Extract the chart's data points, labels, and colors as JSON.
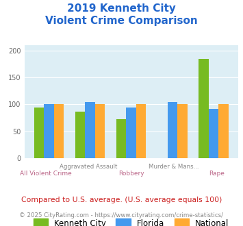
{
  "title_line1": "2019 Kenneth City",
  "title_line2": "Violent Crime Comparison",
  "categories": [
    "All Violent Crime",
    "Aggravated Assault",
    "Robbery",
    "Murder & Mans...",
    "Rape"
  ],
  "kenneth_city": [
    94,
    86,
    73,
    0,
    185
  ],
  "florida": [
    101,
    104,
    94,
    105,
    92
  ],
  "national": [
    100,
    100,
    100,
    100,
    100
  ],
  "colors": {
    "kenneth_city": "#77bb22",
    "florida": "#4499ee",
    "national": "#ffaa33"
  },
  "ylim": [
    0,
    210
  ],
  "yticks": [
    0,
    50,
    100,
    150,
    200
  ],
  "bg_color": "#ddeef5",
  "title_color": "#2266cc",
  "footnote1": "Compared to U.S. average. (U.S. average equals 100)",
  "footnote2": "© 2025 CityRating.com - https://www.cityrating.com/crime-statistics/",
  "footnote1_color": "#cc2222",
  "footnote2_color": "#888888",
  "label_top_color": "#888888",
  "label_bot_color": "#bb6688"
}
